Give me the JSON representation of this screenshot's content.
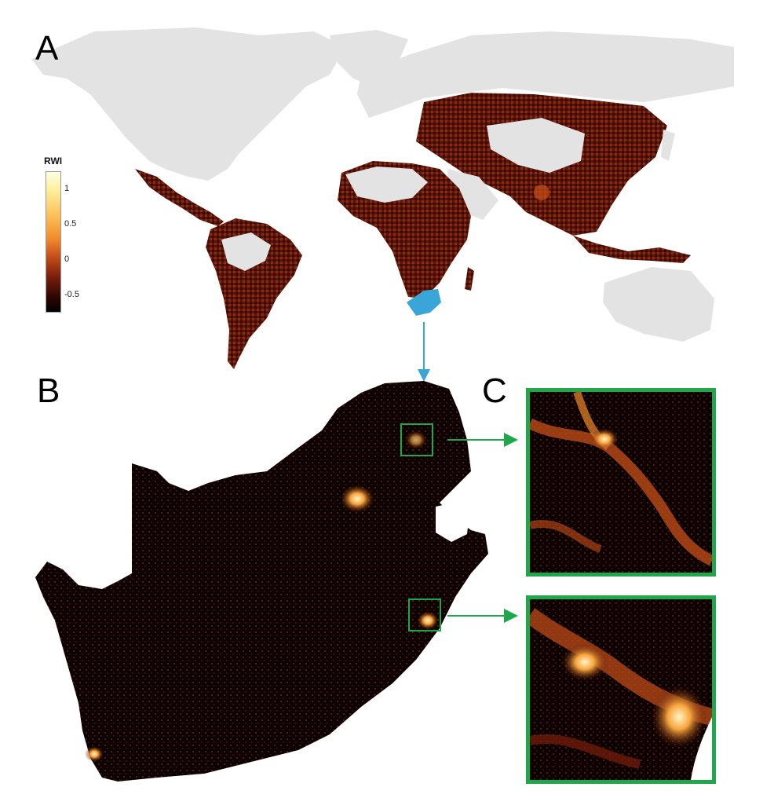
{
  "panels": {
    "a_label": "A",
    "b_label": "B",
    "c_label": "C"
  },
  "legend": {
    "title": "RWI",
    "ticks": [
      "1",
      "0.5",
      "0",
      "-0.5"
    ],
    "colormap": [
      "#000000",
      "#2a0603",
      "#7a1f0c",
      "#c8501a",
      "#f08a2b",
      "#fdc35c",
      "#fff1a0",
      "#ffffe6"
    ]
  },
  "colors": {
    "land_no_data": "#e3e3e3",
    "ocean": "#ffffff",
    "highlight_country": "#3aa6d8",
    "arrow_blue": "#3aa6d8",
    "zoom_box": "#1fa84a"
  }
}
